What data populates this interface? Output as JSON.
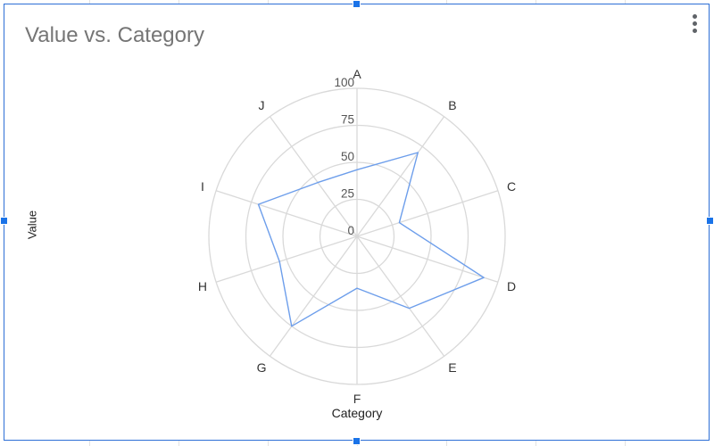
{
  "chart_data": {
    "type": "radar",
    "title": "Value vs. Category",
    "xlabel": "Category",
    "ylabel": "Value",
    "categories": [
      "A",
      "B",
      "C",
      "D",
      "E",
      "F",
      "G",
      "H",
      "I",
      "J"
    ],
    "series": [
      {
        "values": [
          45,
          70,
          30,
          90,
          60,
          35,
          75,
          55,
          70,
          45
        ],
        "color": "#6d9eeb"
      }
    ],
    "rlim": [
      0,
      100
    ],
    "ticks": [
      0,
      25,
      50,
      75,
      100
    ],
    "tick_labels": [
      "0",
      "25",
      "50",
      "75",
      "100"
    ],
    "grid": true,
    "legend": "none"
  },
  "colors": {
    "selection": "#1a73e8",
    "frame": "#2d6fd6",
    "title": "#757575",
    "grid": "#d9d9d9",
    "series": "#6d9eeb"
  },
  "icons": {
    "menu": "more-vert-icon"
  }
}
